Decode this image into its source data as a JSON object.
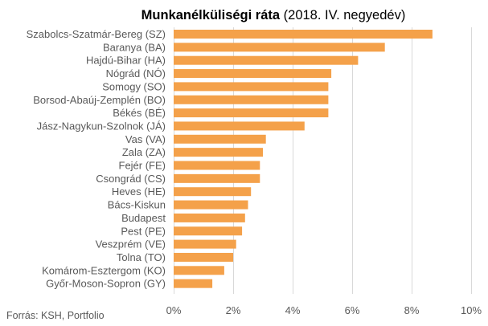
{
  "chart_data": {
    "type": "bar",
    "orientation": "horizontal",
    "title_bold": "Munkanélküliségi ráta",
    "title_rest": " (2018. IV. negyedév)",
    "categories": [
      "Szabolcs-Szatmár-Bereg (SZ)",
      "Baranya (BA)",
      "Hajdú-Bihar (HA)",
      "Nógrád (NÓ)",
      "Somogy (SO)",
      "Borsod-Abaúj-Zemplén (BO)",
      "Békés (BÉ)",
      "Jász-Nagykun-Szolnok (JÁ)",
      "Vas (VA)",
      "Zala (ZA)",
      "Fejér (FE)",
      "Csongrád (CS)",
      "Heves (HE)",
      "Bács-Kiskun",
      "Budapest",
      "Pest (PE)",
      "Veszprém (VE)",
      "Tolna (TO)",
      "Komárom-Esztergom (KO)",
      "Győr-Moson-Sopron (GY)"
    ],
    "values": [
      8.7,
      7.1,
      6.2,
      5.3,
      5.2,
      5.2,
      5.2,
      4.4,
      3.1,
      3.0,
      2.9,
      2.9,
      2.6,
      2.5,
      2.4,
      2.3,
      2.1,
      2.0,
      1.7,
      1.3
    ],
    "xlim": [
      0,
      10
    ],
    "xticks": [
      "0%",
      "2%",
      "4%",
      "6%",
      "8%",
      "10%"
    ],
    "grid": true,
    "legend": "none",
    "bar_color": "#f4a14a",
    "grid_color": "#d9d9d9",
    "text_color": "#595959"
  },
  "source": "Forrás: KSH, Portfolio"
}
